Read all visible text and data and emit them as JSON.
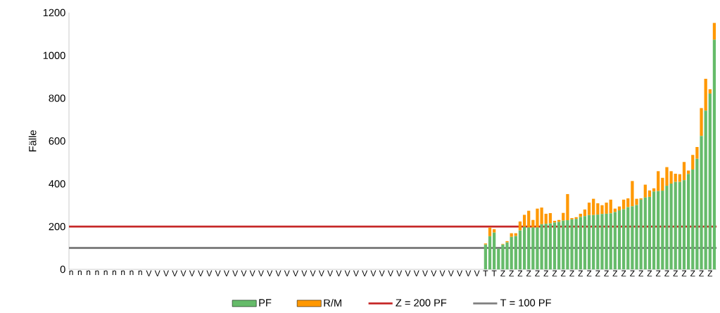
{
  "chart_data": {
    "type": "bar",
    "ylabel": "Fälle",
    "stacked": true,
    "legend": "bottom",
    "categories": [
      "n",
      null,
      "n",
      null,
      "n",
      null,
      "n",
      null,
      "n",
      null,
      "n",
      null,
      "n",
      null,
      "n",
      null,
      "n",
      null,
      "V",
      null,
      "V",
      null,
      "V",
      null,
      "V",
      null,
      "V",
      null,
      "V",
      null,
      "V",
      null,
      "V",
      null,
      "V",
      null,
      "V",
      null,
      "V",
      null,
      "V",
      null,
      "V",
      null,
      "V",
      null,
      "V",
      null,
      "V",
      null,
      "V",
      null,
      "V",
      null,
      "V",
      null,
      "V",
      null,
      "V",
      null,
      "V",
      null,
      "V",
      null,
      "V",
      null,
      "V",
      null,
      "V",
      null,
      "V",
      null,
      "V",
      null,
      "V",
      null,
      "V",
      null,
      "V",
      null,
      "V",
      null,
      "V",
      null,
      "V",
      null,
      "V",
      null,
      "V",
      null,
      "V",
      null,
      "V",
      null,
      "V",
      null,
      "T",
      null,
      "T",
      null,
      "Z",
      null,
      "Z",
      null,
      "Z",
      null,
      "Z",
      null,
      "Z",
      null,
      "Z",
      null,
      "Z",
      null,
      "Z",
      null,
      "Z",
      null,
      "Z",
      null,
      "Z",
      null,
      "Z",
      null,
      "Z",
      null,
      "Z",
      null,
      "Z",
      null,
      "Z",
      null,
      "Z",
      null,
      "Z",
      null,
      "Z",
      null,
      "Z",
      null,
      "Z",
      null,
      "Z",
      null,
      "Z",
      null,
      "Z",
      null,
      "Z",
      null
    ],
    "series": [
      {
        "name": "PF",
        "color": "#66bb6a",
        "values": [
          null,
          null,
          null,
          null,
          null,
          null,
          null,
          null,
          null,
          null,
          null,
          null,
          null,
          null,
          null,
          null,
          null,
          null,
          null,
          null,
          null,
          null,
          null,
          null,
          null,
          null,
          null,
          null,
          null,
          null,
          null,
          null,
          null,
          null,
          null,
          null,
          null,
          null,
          null,
          null,
          null,
          null,
          null,
          null,
          null,
          null,
          null,
          null,
          null,
          null,
          null,
          null,
          null,
          null,
          null,
          null,
          null,
          null,
          null,
          null,
          null,
          null,
          null,
          null,
          null,
          null,
          null,
          null,
          null,
          null,
          null,
          null,
          null,
          null,
          null,
          null,
          null,
          null,
          null,
          null,
          null,
          null,
          null,
          null,
          null,
          null,
          null,
          null,
          null,
          null,
          null,
          null,
          null,
          null,
          null,
          null,
          116,
          155,
          172,
          97,
          116,
          126,
          152,
          156,
          182,
          199,
          196,
          196,
          196,
          211,
          213,
          215,
          219,
          222,
          228,
          230,
          234,
          236,
          245,
          249,
          254,
          254,
          256,
          259,
          260,
          262,
          268,
          276,
          281,
          291,
          295,
          301,
          326,
          336,
          339,
          364,
          366,
          368,
          391,
          401,
          409,
          409,
          417,
          446,
          467,
          517,
          624,
          742,
          822,
          1073
        ]
      },
      {
        "name": "R/M",
        "color": "#ff9800",
        "values": [
          null,
          null,
          null,
          null,
          null,
          null,
          null,
          null,
          null,
          null,
          null,
          null,
          null,
          null,
          null,
          null,
          null,
          null,
          null,
          null,
          null,
          null,
          null,
          null,
          null,
          null,
          null,
          null,
          null,
          null,
          null,
          null,
          null,
          null,
          null,
          null,
          null,
          null,
          null,
          null,
          null,
          null,
          null,
          null,
          null,
          null,
          null,
          null,
          null,
          null,
          null,
          null,
          null,
          null,
          null,
          null,
          null,
          null,
          null,
          null,
          null,
          null,
          null,
          null,
          null,
          null,
          null,
          null,
          null,
          null,
          null,
          null,
          null,
          null,
          null,
          null,
          null,
          null,
          null,
          null,
          null,
          null,
          null,
          null,
          null,
          null,
          null,
          null,
          null,
          null,
          null,
          null,
          null,
          null,
          null,
          null,
          5,
          41,
          16,
          0,
          3,
          6,
          17,
          13,
          42,
          56,
          78,
          35,
          88,
          78,
          47,
          48,
          8,
          9,
          36,
          122,
          6,
          8,
          15,
          31,
          58,
          76,
          53,
          41,
          52,
          64,
          16,
          18,
          45,
          41,
          118,
          29,
          6,
          60,
          30,
          15,
          93,
          60,
          87,
          58,
          38,
          36,
          85,
          16,
          68,
          55,
          130,
          149,
          20,
          79
        ]
      }
    ],
    "ylim": [
      0,
      1200
    ],
    "yticks": [
      0,
      200,
      400,
      600,
      800,
      1000,
      1200
    ],
    "ref_lines": [
      {
        "axis": "y",
        "value": 200,
        "label": "Z = 200 PF",
        "color": "#c62828"
      },
      {
        "axis": "y",
        "value": 100,
        "label": "T = 100 PF",
        "color": "#808080"
      }
    ]
  }
}
